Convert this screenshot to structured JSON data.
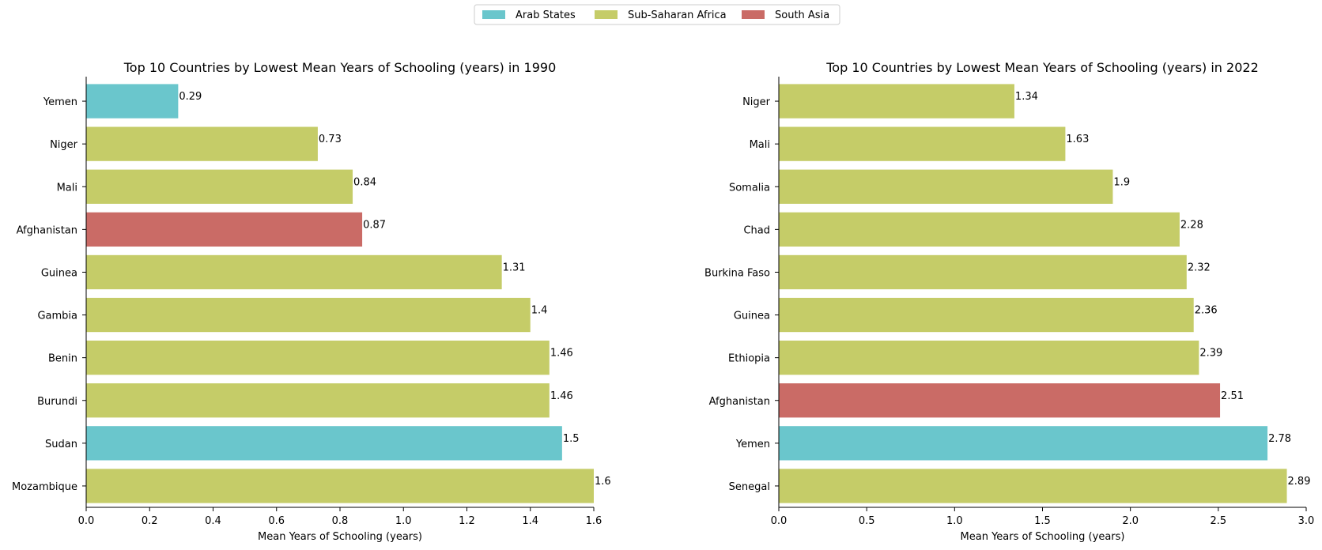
{
  "legend": {
    "placement": "top-center",
    "entries": [
      {
        "name": "Arab States",
        "color": "#6ac6cc"
      },
      {
        "name": "Sub-Saharan Africa",
        "color": "#c5cc68"
      },
      {
        "name": "South Asia",
        "color": "#ca6b66"
      }
    ]
  },
  "chart_data": [
    {
      "type": "bar",
      "orientation": "horizontal",
      "title": "Top 10 Countries by Lowest Mean Years of Schooling (years) in 1990",
      "xlabel": "Mean Years of Schooling (years)",
      "ylabel": "",
      "xlim": [
        0,
        1.6
      ],
      "xticks": [
        "0.0",
        "0.2",
        "0.4",
        "0.6",
        "0.8",
        "1.0",
        "1.2",
        "1.4",
        "1.6"
      ],
      "grid": false,
      "categories": [
        "Yemen",
        "Niger",
        "Mali",
        "Afghanistan",
        "Guinea",
        "Gambia",
        "Benin",
        "Burundi",
        "Sudan",
        "Mozambique"
      ],
      "values": [
        0.29,
        0.73,
        0.84,
        0.87,
        1.31,
        1.4,
        1.46,
        1.46,
        1.5,
        1.6
      ],
      "value_labels": [
        "0.29",
        "0.73",
        "0.84",
        "0.87",
        "1.31",
        "1.4",
        "1.46",
        "1.46",
        "1.5",
        "1.6"
      ],
      "regions": [
        "Arab States",
        "Sub-Saharan Africa",
        "Sub-Saharan Africa",
        "South Asia",
        "Sub-Saharan Africa",
        "Sub-Saharan Africa",
        "Sub-Saharan Africa",
        "Sub-Saharan Africa",
        "Arab States",
        "Sub-Saharan Africa"
      ]
    },
    {
      "type": "bar",
      "orientation": "horizontal",
      "title": "Top 10 Countries by Lowest Mean Years of Schooling (years) in 2022",
      "xlabel": "Mean Years of Schooling (years)",
      "ylabel": "",
      "xlim": [
        0,
        3.0
      ],
      "xticks": [
        "0.0",
        "0.5",
        "1.0",
        "1.5",
        "2.0",
        "2.5",
        "3.0"
      ],
      "grid": false,
      "categories": [
        "Niger",
        "Mali",
        "Somalia",
        "Chad",
        "Burkina Faso",
        "Guinea",
        "Ethiopia",
        "Afghanistan",
        "Yemen",
        "Senegal"
      ],
      "values": [
        1.34,
        1.63,
        1.9,
        2.28,
        2.32,
        2.36,
        2.39,
        2.51,
        2.78,
        2.89
      ],
      "value_labels": [
        "1.34",
        "1.63",
        "1.9",
        "2.28",
        "2.32",
        "2.36",
        "2.39",
        "2.51",
        "2.78",
        "2.89"
      ],
      "regions": [
        "Sub-Saharan Africa",
        "Sub-Saharan Africa",
        "Sub-Saharan Africa",
        "Sub-Saharan Africa",
        "Sub-Saharan Africa",
        "Sub-Saharan Africa",
        "Sub-Saharan Africa",
        "South Asia",
        "Arab States",
        "Sub-Saharan Africa"
      ]
    }
  ]
}
